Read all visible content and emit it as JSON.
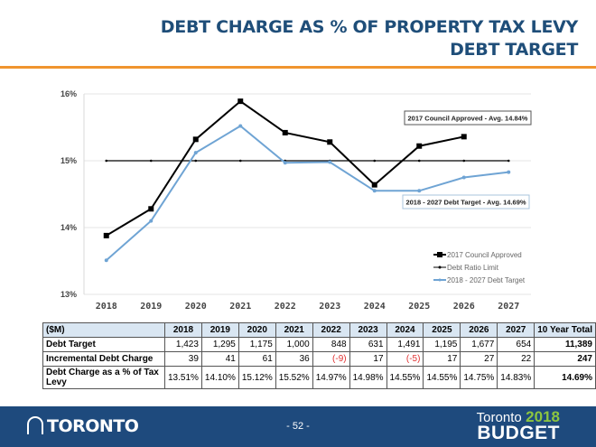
{
  "header": {
    "title_line1": "DEBT CHARGE AS % OF PROPERTY TAX LEVY",
    "title_line2": "DEBT TARGET"
  },
  "chart_data": {
    "type": "line",
    "title": "",
    "xlabel": "",
    "ylabel": "",
    "x": [
      "2018",
      "2019",
      "2020",
      "2021",
      "2022",
      "2023",
      "2024",
      "2025",
      "2026",
      "2027"
    ],
    "ylim": [
      13,
      16
    ],
    "yticks": [
      "13%",
      "14%",
      "15%",
      "16%"
    ],
    "grid": true,
    "legend_position": "bottom-right",
    "series": [
      {
        "name": "2017 Council Approved",
        "color": "#000000",
        "marker": "square",
        "values": [
          13.88,
          14.28,
          15.32,
          15.89,
          15.42,
          15.28,
          14.64,
          15.22,
          15.36,
          null
        ]
      },
      {
        "name": "Debt Ratio Limit",
        "color": "#000000",
        "marker": "dot",
        "values": [
          15,
          15,
          15,
          15,
          15,
          15,
          15,
          15,
          15,
          15
        ]
      },
      {
        "name": "2018 - 2027 Debt Target",
        "color": "#6fa4d4",
        "marker": "dot",
        "values": [
          13.51,
          14.1,
          15.12,
          15.52,
          14.97,
          14.98,
          14.55,
          14.55,
          14.75,
          14.83
        ]
      }
    ],
    "annotations": [
      {
        "text": "2017 Council Approved - Avg. 14.84%",
        "border": "#555555"
      },
      {
        "text": "2018 - 2027 Debt Target - Avg. 14.69%",
        "border": "#a9c4de"
      }
    ]
  },
  "table": {
    "headers": [
      "($M)",
      "2018",
      "2019",
      "2020",
      "2021",
      "2022",
      "2023",
      "2024",
      "2025",
      "2026",
      "2027",
      "10 Year Total"
    ],
    "rows": [
      {
        "label": "Debt Target",
        "values": [
          "1,423",
          "1,295",
          "1,175",
          "1,000",
          "848",
          "631",
          "1,491",
          "1,195",
          "1,677",
          "654"
        ],
        "total": "11,389"
      },
      {
        "label": "Incremental Debt Charge",
        "values": [
          "39",
          "41",
          "61",
          "36",
          "(-9)",
          "17",
          "(-5)",
          "17",
          "27",
          "22"
        ],
        "total": "247"
      },
      {
        "label": "Debt Charge as a % of Tax Levy",
        "values": [
          "13.51%",
          "14.10%",
          "15.12%",
          "15.52%",
          "14.97%",
          "14.98%",
          "14.55%",
          "14.55%",
          "14.75%",
          "14.83%"
        ],
        "total": "14.69%"
      }
    ]
  },
  "footer": {
    "logo_text": "TORONTO",
    "page_number": "- 52 -",
    "budget_city": "Toronto",
    "budget_year": "2018",
    "budget_word": "BUDGET"
  }
}
